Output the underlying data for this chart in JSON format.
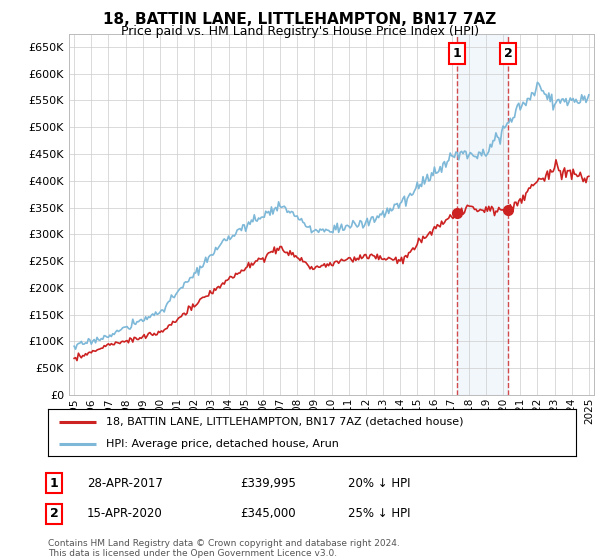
{
  "title": "18, BATTIN LANE, LITTLEHAMPTON, BN17 7AZ",
  "subtitle": "Price paid vs. HM Land Registry's House Price Index (HPI)",
  "hpi_color": "#7db8d8",
  "price_color": "#cc2222",
  "marker_color": "#cc2222",
  "bg_color": "#ffffff",
  "grid_color": "#cccccc",
  "ylim": [
    0,
    675000
  ],
  "yticks": [
    0,
    50000,
    100000,
    150000,
    200000,
    250000,
    300000,
    350000,
    400000,
    450000,
    500000,
    550000,
    600000,
    650000
  ],
  "transaction1": {
    "date": "28-APR-2017",
    "price": 339995,
    "label": "1",
    "x": 2017.33
  },
  "transaction2": {
    "date": "15-APR-2020",
    "price": 345000,
    "label": "2",
    "x": 2020.29
  },
  "legend_line1": "18, BATTIN LANE, LITTLEHAMPTON, BN17 7AZ (detached house)",
  "legend_line2": "HPI: Average price, detached house, Arun",
  "footnote": "Contains HM Land Registry data © Crown copyright and database right 2024.\nThis data is licensed under the Open Government Licence v3.0.",
  "table_row1": [
    "1",
    "28-APR-2017",
    "£339,995",
    "20% ↓ HPI"
  ],
  "table_row2": [
    "2",
    "15-APR-2020",
    "£345,000",
    "25% ↓ HPI"
  ]
}
